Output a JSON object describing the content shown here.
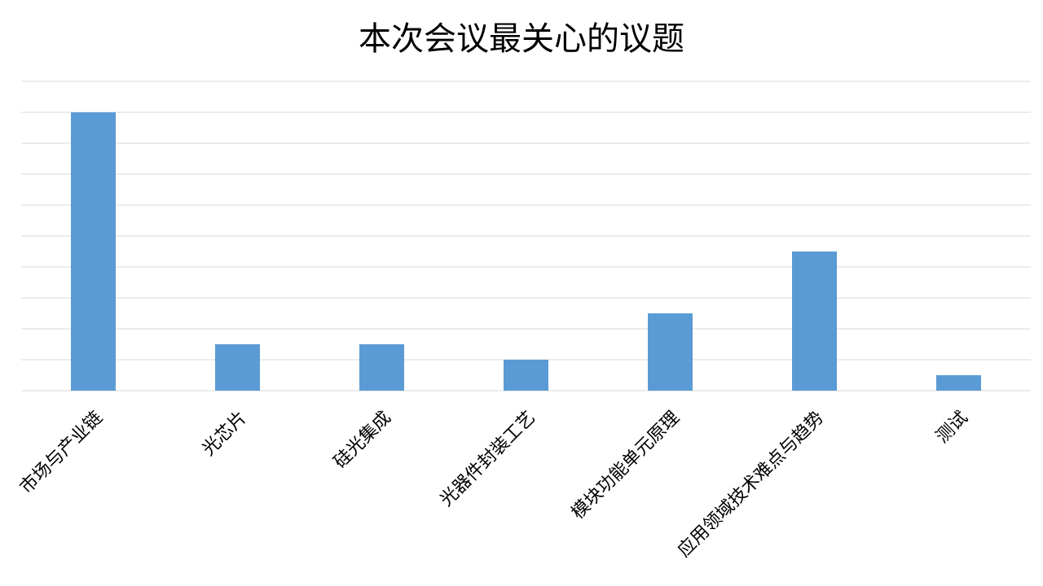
{
  "chart_data": {
    "type": "bar",
    "title": "本次会议最关心的议题",
    "categories": [
      "市场与产业链",
      "光芯片",
      "硅光集成",
      "光器件封装工艺",
      "模块功能单元原理",
      "应用领域技术难点与趋势",
      "测试"
    ],
    "values": [
      9,
      1.5,
      1.5,
      1,
      2.5,
      4.5,
      0.5
    ],
    "color": "#5b9bd5",
    "ylim": [
      0,
      10
    ],
    "yticks": [
      0,
      1,
      2,
      3,
      4,
      5,
      6,
      7,
      8,
      9,
      10
    ],
    "grid": true
  }
}
